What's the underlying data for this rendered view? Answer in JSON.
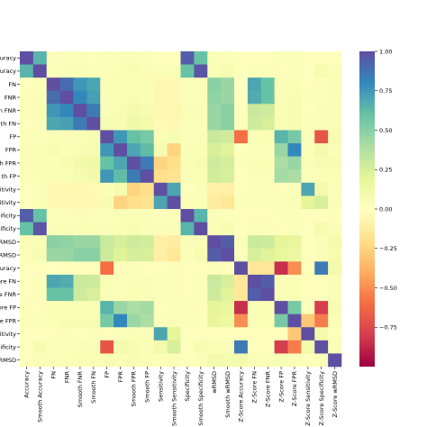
{
  "chart_data": {
    "type": "heatmap",
    "title": "",
    "xlabel": "",
    "ylabel": "",
    "rows": [
      "Accuracy",
      "Smooth Accuracy",
      "FN",
      "FNR",
      "Smooth FNR",
      "Smooth FN",
      "FP",
      "FPR",
      "Smooth FPR",
      "Smooth FP",
      "Sensitivity",
      "Smooth Sensitivity",
      "Specificity",
      "Smooth Specificity",
      "wRMSD",
      "Smooth wRMSD",
      "Z-Score Accuracy",
      "Z-Score FN",
      "Z-Score FNR",
      "Z-Score FP",
      "Z-Score FPR",
      "Z-Score Sensitivity",
      "Z-Score Specificity",
      "Z-Score wRMSD"
    ],
    "row_tick_labels": [
      "ccuracy",
      "ccuracy",
      "FN",
      "FNR",
      "n FNR",
      "th FN",
      "FP",
      "FPR",
      "th FPR",
      "th FP",
      "itivity",
      "sitivity",
      "pecificity",
      "ecificity",
      "wRMSD",
      "wRMSD",
      "ccuracy",
      "ore FN",
      "ore FNR",
      "ore FP",
      "ore FPR",
      "sitivity",
      "ecificity",
      "wRMSD"
    ],
    "col_tick_labels": [
      "Accuracy",
      "Smooth Accuracy",
      "FN",
      "FNR",
      "Smooth FNR",
      "Smooth FN",
      "FP",
      "FPR",
      "Smooth FPR",
      "Smooth FP",
      "Sensitivity",
      "Smooth Sensitivity",
      "Specificity",
      "Smooth Specificity",
      "wRMSD",
      "Smooth wRMSD",
      "Z-Score Accuracy",
      "Z-Score FN",
      "Z-Score FNR",
      "Z-Score FP",
      "Z-Score FPR",
      "Z-Score Sensitivity",
      "Z-Score Specificity",
      "Z-Score wRMSD"
    ],
    "values": [
      [
        1.0,
        0.65,
        0.02,
        0.03,
        0.03,
        0.02,
        0.03,
        0.04,
        0.04,
        0.03,
        0.02,
        0.02,
        0.95,
        0.6,
        0.04,
        0.03,
        0.02,
        0.02,
        0.02,
        0.03,
        0.03,
        0.02,
        0.02,
        0.02
      ],
      [
        0.65,
        1.0,
        0.03,
        0.04,
        0.05,
        0.04,
        0.03,
        0.05,
        0.06,
        0.05,
        0.04,
        0.05,
        0.6,
        0.98,
        0.05,
        0.07,
        0.02,
        0.03,
        0.03,
        0.02,
        0.03,
        0.02,
        0.08,
        0.04
      ],
      [
        0.02,
        0.03,
        1.0,
        0.9,
        0.75,
        0.7,
        0.05,
        0.06,
        0.05,
        0.05,
        -0.05,
        -0.05,
        0.03,
        0.04,
        0.5,
        0.45,
        0.0,
        0.7,
        0.6,
        0.05,
        0.05,
        0.02,
        0.03,
        0.04
      ],
      [
        0.03,
        0.04,
        0.9,
        1.0,
        0.8,
        0.72,
        0.04,
        0.05,
        0.06,
        0.05,
        -0.06,
        -0.05,
        0.03,
        0.04,
        0.48,
        0.45,
        0.01,
        0.68,
        0.6,
        0.05,
        0.06,
        0.03,
        0.03,
        0.05
      ],
      [
        0.03,
        0.05,
        0.75,
        0.8,
        1.0,
        0.85,
        0.05,
        0.06,
        0.1,
        0.08,
        -0.05,
        -0.06,
        0.04,
        0.05,
        0.45,
        0.5,
        0.02,
        0.3,
        0.28,
        0.05,
        0.06,
        0.02,
        0.04,
        0.05
      ],
      [
        0.02,
        0.04,
        0.7,
        0.72,
        0.85,
        1.0,
        0.06,
        0.07,
        0.12,
        0.1,
        -0.04,
        -0.05,
        0.03,
        0.05,
        0.45,
        0.5,
        0.02,
        0.28,
        0.25,
        0.05,
        0.06,
        0.03,
        0.04,
        0.05
      ],
      [
        0.03,
        0.03,
        0.05,
        0.04,
        0.05,
        0.06,
        1.0,
        0.75,
        0.6,
        0.55,
        0.05,
        0.06,
        0.03,
        0.04,
        0.3,
        0.28,
        -0.6,
        0.05,
        0.05,
        0.65,
        0.55,
        0.02,
        -0.7,
        0.06
      ],
      [
        0.04,
        0.05,
        0.06,
        0.05,
        0.06,
        0.07,
        0.75,
        1.0,
        0.7,
        0.62,
        0.08,
        -0.25,
        0.05,
        0.05,
        0.25,
        0.22,
        0.02,
        0.03,
        0.03,
        0.45,
        0.8,
        0.03,
        0.1,
        0.05
      ],
      [
        0.04,
        0.06,
        0.05,
        0.06,
        0.1,
        0.12,
        0.6,
        0.7,
        1.0,
        0.85,
        -0.25,
        -0.2,
        0.05,
        0.06,
        0.28,
        0.26,
        0.03,
        0.04,
        0.05,
        0.4,
        0.45,
        0.04,
        0.06,
        0.06
      ],
      [
        0.03,
        0.05,
        0.05,
        0.05,
        0.08,
        0.1,
        0.75,
        0.62,
        0.85,
        1.0,
        -0.2,
        -0.18,
        0.04,
        0.05,
        0.27,
        0.25,
        0.02,
        0.04,
        0.04,
        0.42,
        0.4,
        0.03,
        0.05,
        0.05
      ],
      [
        0.02,
        0.04,
        -0.05,
        -0.06,
        -0.05,
        -0.04,
        0.05,
        0.08,
        -0.25,
        -0.2,
        1.0,
        0.7,
        0.02,
        0.04,
        -0.1,
        -0.1,
        0.02,
        0.03,
        0.03,
        0.02,
        0.03,
        0.7,
        0.1,
        0.03
      ],
      [
        0.02,
        0.05,
        -0.05,
        -0.05,
        -0.06,
        -0.05,
        0.06,
        -0.25,
        -0.2,
        -0.18,
        0.7,
        1.0,
        0.03,
        0.05,
        -0.12,
        -0.15,
        0.03,
        0.03,
        0.03,
        0.03,
        0.04,
        0.2,
        0.25,
        0.04
      ],
      [
        0.95,
        0.6,
        0.03,
        0.03,
        0.04,
        0.03,
        0.03,
        0.05,
        0.05,
        0.04,
        0.02,
        0.03,
        1.0,
        0.65,
        0.04,
        0.03,
        0.02,
        0.02,
        0.02,
        0.03,
        0.03,
        0.02,
        0.02,
        0.02
      ],
      [
        0.6,
        0.98,
        0.04,
        0.04,
        0.05,
        0.05,
        0.04,
        0.05,
        0.06,
        0.05,
        0.04,
        0.05,
        0.65,
        1.0,
        0.05,
        0.07,
        0.02,
        0.03,
        0.03,
        0.02,
        0.03,
        0.02,
        0.08,
        0.04
      ],
      [
        0.04,
        0.05,
        0.5,
        0.48,
        0.45,
        0.45,
        0.3,
        0.25,
        0.28,
        0.27,
        -0.1,
        -0.12,
        0.04,
        0.05,
        1.0,
        0.95,
        0.03,
        0.3,
        0.28,
        0.2,
        0.18,
        0.02,
        0.05,
        0.1
      ],
      [
        0.03,
        0.07,
        0.45,
        0.45,
        0.5,
        0.5,
        0.28,
        0.22,
        0.26,
        0.25,
        -0.1,
        -0.15,
        0.03,
        0.07,
        0.95,
        1.0,
        0.02,
        0.25,
        0.22,
        0.18,
        0.15,
        0.02,
        0.04,
        0.08
      ],
      [
        0.02,
        0.02,
        0.0,
        0.01,
        0.02,
        0.02,
        -0.6,
        0.02,
        0.03,
        0.02,
        0.02,
        0.03,
        0.02,
        0.02,
        0.03,
        0.02,
        1.0,
        -0.15,
        -0.15,
        -0.85,
        -0.5,
        0.02,
        0.85,
        0.1
      ],
      [
        0.02,
        0.03,
        0.7,
        0.68,
        0.3,
        0.28,
        0.05,
        0.03,
        0.04,
        0.04,
        0.03,
        0.03,
        0.02,
        0.03,
        0.3,
        0.25,
        -0.15,
        1.0,
        0.95,
        0.05,
        0.05,
        0.02,
        0.02,
        0.05
      ],
      [
        0.02,
        0.03,
        0.6,
        0.6,
        0.28,
        0.25,
        0.05,
        0.03,
        0.05,
        0.04,
        0.03,
        0.03,
        0.02,
        0.03,
        0.28,
        0.22,
        -0.15,
        0.95,
        1.0,
        0.05,
        0.05,
        0.02,
        0.02,
        0.05
      ],
      [
        0.03,
        0.02,
        0.05,
        0.05,
        0.05,
        0.05,
        0.65,
        0.45,
        0.4,
        0.42,
        0.02,
        0.03,
        0.03,
        0.02,
        0.2,
        0.18,
        -0.85,
        0.05,
        0.05,
        1.0,
        0.55,
        0.02,
        -0.8,
        0.06
      ],
      [
        0.03,
        0.03,
        0.05,
        0.06,
        0.06,
        0.06,
        0.55,
        0.8,
        0.45,
        0.4,
        0.03,
        0.04,
        0.03,
        0.03,
        0.18,
        0.15,
        -0.5,
        0.05,
        0.05,
        0.55,
        1.0,
        -0.3,
        -0.55,
        0.05
      ],
      [
        0.02,
        0.02,
        0.02,
        0.03,
        0.02,
        0.03,
        0.02,
        0.03,
        0.04,
        0.03,
        0.7,
        0.2,
        0.02,
        0.02,
        0.02,
        0.02,
        0.02,
        0.02,
        0.02,
        0.02,
        -0.3,
        1.0,
        0.1,
        0.02
      ],
      [
        0.02,
        0.08,
        0.03,
        0.03,
        0.04,
        0.04,
        -0.7,
        0.1,
        0.06,
        0.05,
        0.1,
        0.25,
        0.02,
        0.08,
        0.05,
        0.04,
        0.85,
        0.02,
        0.02,
        -0.8,
        -0.55,
        0.1,
        1.0,
        0.05
      ],
      [
        0.02,
        0.04,
        0.04,
        0.05,
        0.05,
        0.05,
        0.06,
        0.05,
        0.06,
        0.05,
        0.03,
        0.04,
        0.02,
        0.04,
        0.1,
        0.08,
        0.1,
        0.05,
        0.05,
        0.06,
        0.05,
        0.02,
        0.05,
        1.0
      ]
    ],
    "vmin": -1.0,
    "vmax": 1.0,
    "colormap": "Spectral",
    "colorbar_ticks": [
      1.0,
      0.75,
      0.5,
      0.25,
      0.0,
      -0.25,
      -0.5,
      -0.75
    ],
    "colorbar_tick_labels": [
      "1.00",
      "0.75",
      "0.50",
      "0.25",
      "0.00",
      "−0.25",
      "−0.50",
      "−0.75"
    ]
  }
}
